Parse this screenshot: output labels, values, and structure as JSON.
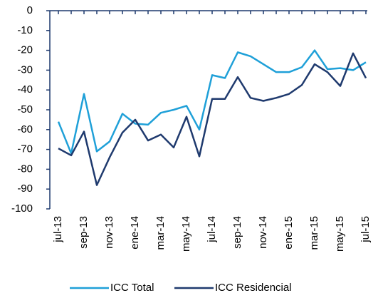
{
  "chart_data": {
    "type": "line",
    "categories": [
      "jul-13",
      null,
      "sep-13",
      null,
      "nov-13",
      null,
      "ene-14",
      null,
      "mar-14",
      null,
      "may-14",
      null,
      "jul-14",
      null,
      "sep-14",
      null,
      "nov-14",
      null,
      "ene-15",
      null,
      "mar-15",
      null,
      "may-15",
      null,
      "jul-15"
    ],
    "series": [
      {
        "name": "ICC Total",
        "color": "#1fa0d8",
        "values": [
          -56,
          -72,
          -42,
          -71,
          -66,
          -52,
          -57,
          -57.5,
          -51.5,
          -50,
          -48,
          -60,
          -32.5,
          -34,
          -21,
          -23,
          -27,
          -31,
          -31,
          -28.5,
          -20,
          -29.5,
          -29,
          -30,
          -26
        ]
      },
      {
        "name": "ICC Residencial",
        "color": "#1f3a6e",
        "values": [
          -69.5,
          -73,
          -61,
          -88,
          -74,
          -61.5,
          -55,
          -65.5,
          -62.5,
          -69,
          -53.5,
          -73.5,
          -44.5,
          -44.5,
          -33.5,
          -44,
          -45.5,
          -44,
          -42,
          -37.5,
          -27,
          -31,
          -38,
          -21.5,
          -34
        ]
      }
    ],
    "ylim": [
      -100,
      0
    ],
    "yticks": [
      0,
      -10,
      -20,
      -30,
      -40,
      -50,
      -60,
      -70,
      -80,
      -90,
      -100
    ],
    "legend": "bottom"
  }
}
